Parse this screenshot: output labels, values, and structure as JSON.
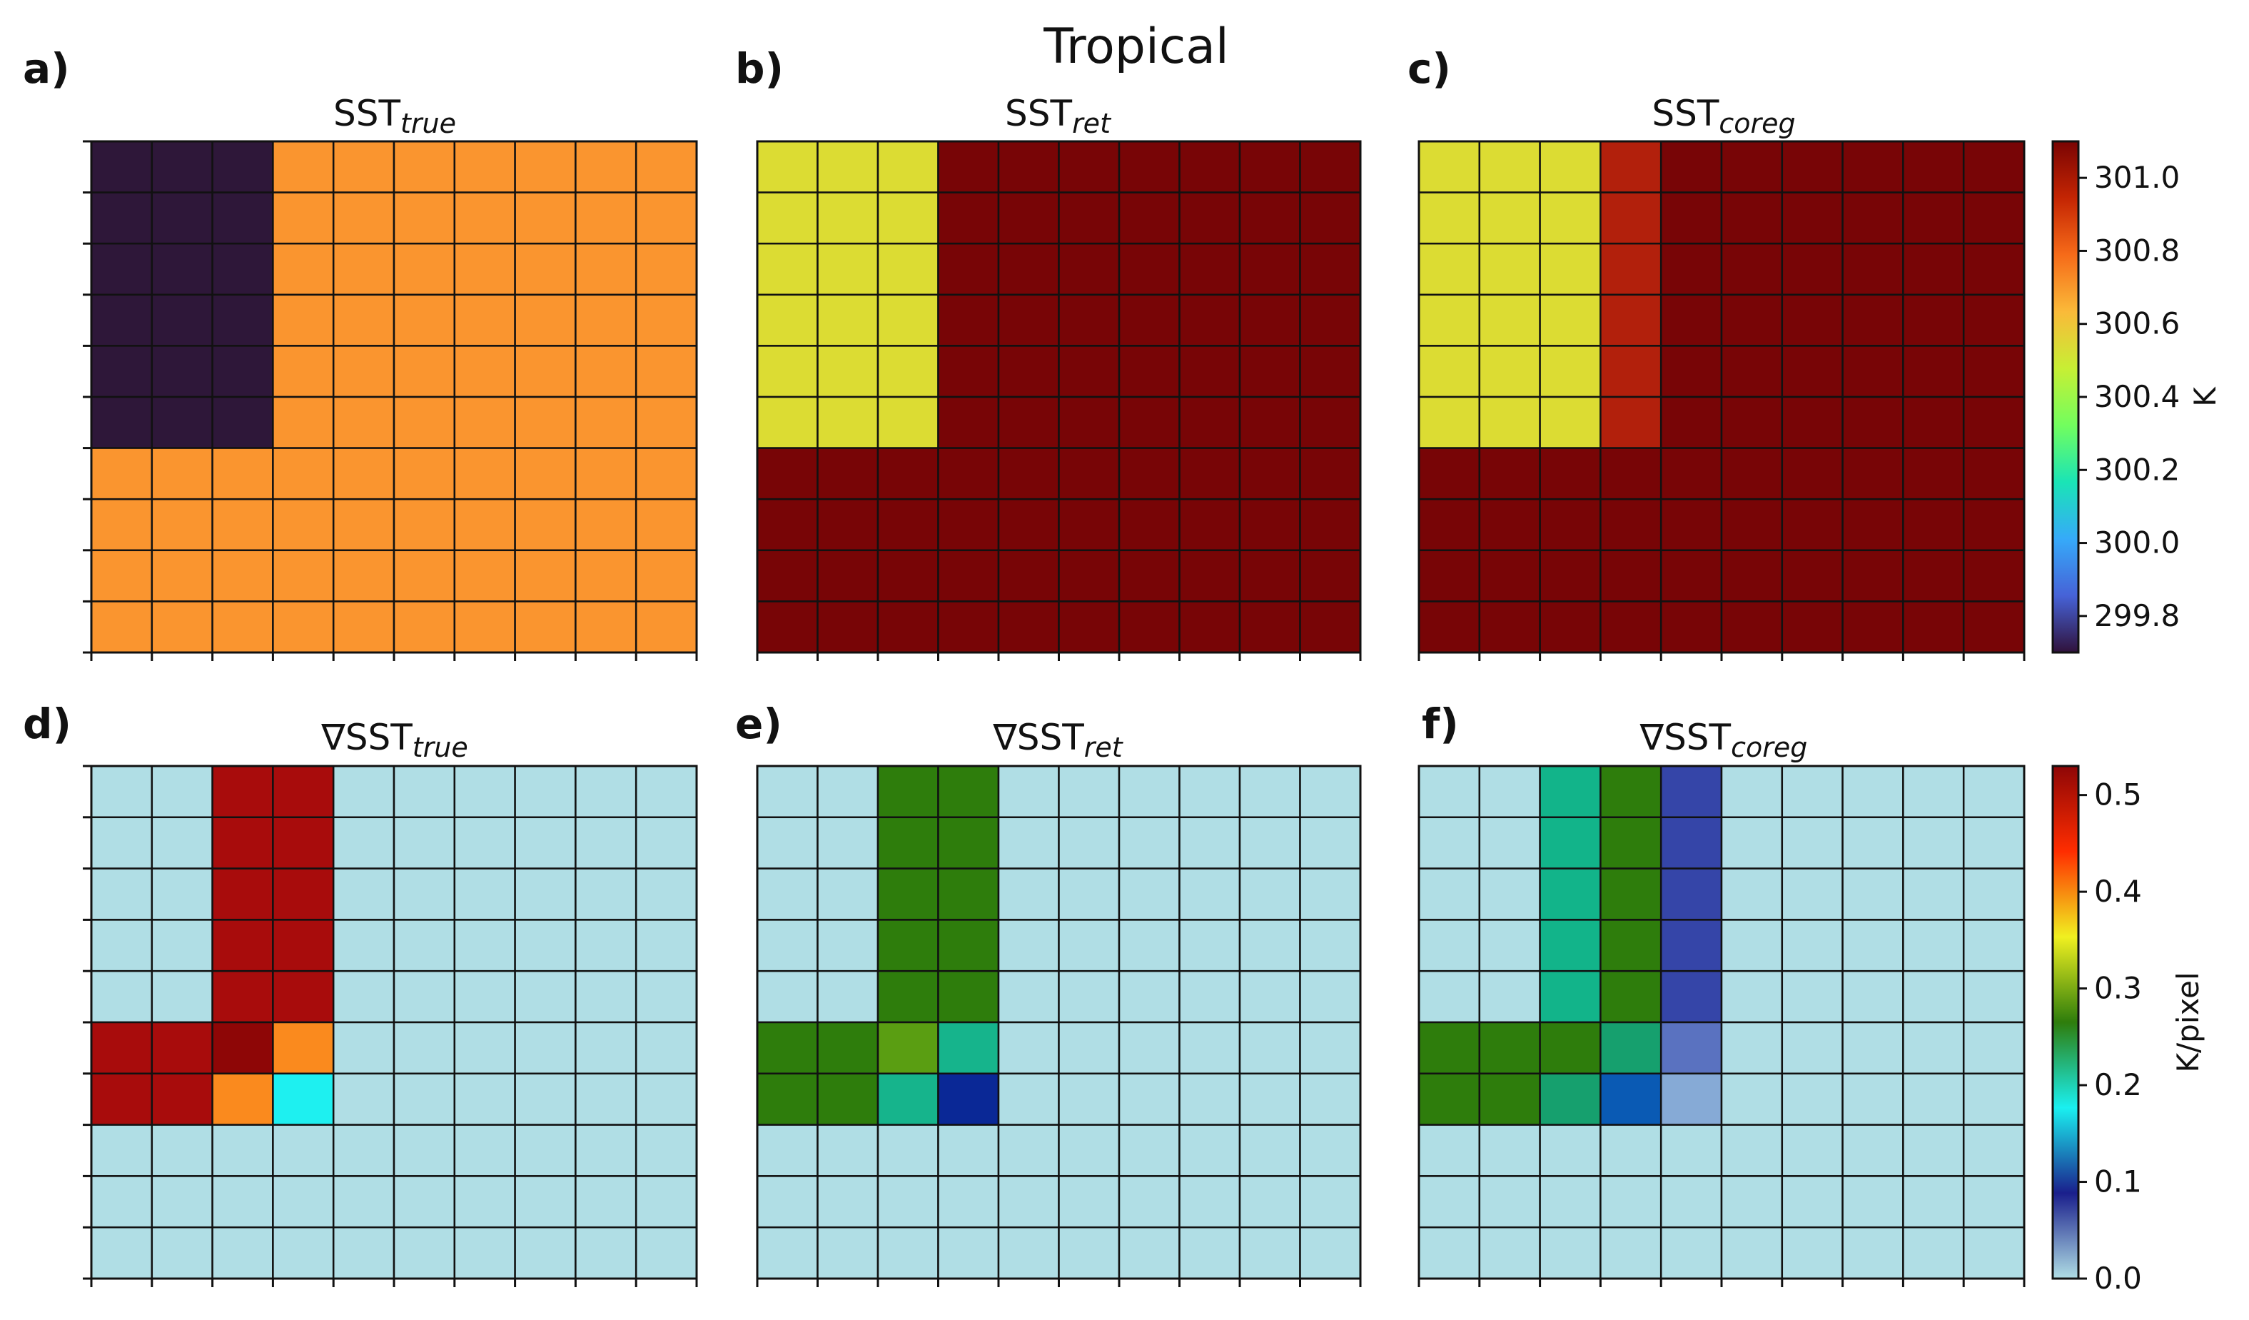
{
  "figure": {
    "title": "Tropical"
  },
  "chart_data": [
    {
      "type": "heatmap",
      "panel": "a)",
      "title_main": "SST",
      "title_sub": "true",
      "scale": "temperature",
      "grid": [
        [
          "#2E1739",
          "#2E1739",
          "#2E1739",
          "#FA952F",
          "#FA952F",
          "#FA952F",
          "#FA952F",
          "#FA952F",
          "#FA952F",
          "#FA952F"
        ],
        [
          "#2E1739",
          "#2E1739",
          "#2E1739",
          "#FA952F",
          "#FA952F",
          "#FA952F",
          "#FA952F",
          "#FA952F",
          "#FA952F",
          "#FA952F"
        ],
        [
          "#2E1739",
          "#2E1739",
          "#2E1739",
          "#FA952F",
          "#FA952F",
          "#FA952F",
          "#FA952F",
          "#FA952F",
          "#FA952F",
          "#FA952F"
        ],
        [
          "#2E1739",
          "#2E1739",
          "#2E1739",
          "#FA952F",
          "#FA952F",
          "#FA952F",
          "#FA952F",
          "#FA952F",
          "#FA952F",
          "#FA952F"
        ],
        [
          "#2E1739",
          "#2E1739",
          "#2E1739",
          "#FA952F",
          "#FA952F",
          "#FA952F",
          "#FA952F",
          "#FA952F",
          "#FA952F",
          "#FA952F"
        ],
        [
          "#2E1739",
          "#2E1739",
          "#2E1739",
          "#FA952F",
          "#FA952F",
          "#FA952F",
          "#FA952F",
          "#FA952F",
          "#FA952F",
          "#FA952F"
        ],
        [
          "#FA952F",
          "#FA952F",
          "#FA952F",
          "#FA952F",
          "#FA952F",
          "#FA952F",
          "#FA952F",
          "#FA952F",
          "#FA952F",
          "#FA952F"
        ],
        [
          "#FA952F",
          "#FA952F",
          "#FA952F",
          "#FA952F",
          "#FA952F",
          "#FA952F",
          "#FA952F",
          "#FA952F",
          "#FA952F",
          "#FA952F"
        ],
        [
          "#FA952F",
          "#FA952F",
          "#FA952F",
          "#FA952F",
          "#FA952F",
          "#FA952F",
          "#FA952F",
          "#FA952F",
          "#FA952F",
          "#FA952F"
        ],
        [
          "#FA952F",
          "#FA952F",
          "#FA952F",
          "#FA952F",
          "#FA952F",
          "#FA952F",
          "#FA952F",
          "#FA952F",
          "#FA952F",
          "#FA952F"
        ]
      ]
    },
    {
      "type": "heatmap",
      "panel": "b)",
      "title_main": "SST",
      "title_sub": "ret",
      "scale": "temperature",
      "grid": [
        [
          "#DCDC33",
          "#DCDC33",
          "#DCDC33",
          "#780506",
          "#780506",
          "#780506",
          "#780506",
          "#780506",
          "#780506",
          "#780506"
        ],
        [
          "#DCDC33",
          "#DCDC33",
          "#DCDC33",
          "#780506",
          "#780506",
          "#780506",
          "#780506",
          "#780506",
          "#780506",
          "#780506"
        ],
        [
          "#DCDC33",
          "#DCDC33",
          "#DCDC33",
          "#780506",
          "#780506",
          "#780506",
          "#780506",
          "#780506",
          "#780506",
          "#780506"
        ],
        [
          "#DCDC33",
          "#DCDC33",
          "#DCDC33",
          "#780506",
          "#780506",
          "#780506",
          "#780506",
          "#780506",
          "#780506",
          "#780506"
        ],
        [
          "#DCDC33",
          "#DCDC33",
          "#DCDC33",
          "#780506",
          "#780506",
          "#780506",
          "#780506",
          "#780506",
          "#780506",
          "#780506"
        ],
        [
          "#DCDC33",
          "#DCDC33",
          "#DCDC33",
          "#780506",
          "#780506",
          "#780506",
          "#780506",
          "#780506",
          "#780506",
          "#780506"
        ],
        [
          "#780506",
          "#780506",
          "#780506",
          "#780506",
          "#780506",
          "#780506",
          "#780506",
          "#780506",
          "#780506",
          "#780506"
        ],
        [
          "#780506",
          "#780506",
          "#780506",
          "#780506",
          "#780506",
          "#780506",
          "#780506",
          "#780506",
          "#780506",
          "#780506"
        ],
        [
          "#780506",
          "#780506",
          "#780506",
          "#780506",
          "#780506",
          "#780506",
          "#780506",
          "#780506",
          "#780506",
          "#780506"
        ],
        [
          "#780506",
          "#780506",
          "#780506",
          "#780506",
          "#780506",
          "#780506",
          "#780506",
          "#780506",
          "#780506",
          "#780506"
        ]
      ]
    },
    {
      "type": "heatmap",
      "panel": "c)",
      "title_main": "SST",
      "title_sub": "coreg",
      "scale": "temperature",
      "grid": [
        [
          "#DCDC33",
          "#DCDC33",
          "#DCDC33",
          "#B2200C",
          "#780506",
          "#780506",
          "#780506",
          "#780506",
          "#780506",
          "#780506"
        ],
        [
          "#DCDC33",
          "#DCDC33",
          "#DCDC33",
          "#B2200C",
          "#780506",
          "#780506",
          "#780506",
          "#780506",
          "#780506",
          "#780506"
        ],
        [
          "#DCDC33",
          "#DCDC33",
          "#DCDC33",
          "#B2200C",
          "#780506",
          "#780506",
          "#780506",
          "#780506",
          "#780506",
          "#780506"
        ],
        [
          "#DCDC33",
          "#DCDC33",
          "#DCDC33",
          "#B2200C",
          "#780506",
          "#780506",
          "#780506",
          "#780506",
          "#780506",
          "#780506"
        ],
        [
          "#DCDC33",
          "#DCDC33",
          "#DCDC33",
          "#B2200C",
          "#780506",
          "#780506",
          "#780506",
          "#780506",
          "#780506",
          "#780506"
        ],
        [
          "#DCDC33",
          "#DCDC33",
          "#DCDC33",
          "#B2200C",
          "#780506",
          "#780506",
          "#780506",
          "#780506",
          "#780506",
          "#780506"
        ],
        [
          "#780506",
          "#780506",
          "#780506",
          "#780506",
          "#780506",
          "#780506",
          "#780506",
          "#780506",
          "#780506",
          "#780506"
        ],
        [
          "#780506",
          "#780506",
          "#780506",
          "#780506",
          "#780506",
          "#780506",
          "#780506",
          "#780506",
          "#780506",
          "#780506"
        ],
        [
          "#780506",
          "#780506",
          "#780506",
          "#780506",
          "#780506",
          "#780506",
          "#780506",
          "#780506",
          "#780506",
          "#780506"
        ],
        [
          "#780506",
          "#780506",
          "#780506",
          "#780506",
          "#780506",
          "#780506",
          "#780506",
          "#780506",
          "#780506",
          "#780506"
        ]
      ]
    },
    {
      "type": "heatmap",
      "panel": "d)",
      "title_main": "∇SST",
      "title_sub": "true",
      "scale": "gradient",
      "grid": [
        [
          "#B0DEE5",
          "#B0DEE5",
          "#A80C0C",
          "#A80C0C",
          "#B0DEE5",
          "#B0DEE5",
          "#B0DEE5",
          "#B0DEE5",
          "#B0DEE5",
          "#B0DEE5"
        ],
        [
          "#B0DEE5",
          "#B0DEE5",
          "#A80C0C",
          "#A80C0C",
          "#B0DEE5",
          "#B0DEE5",
          "#B0DEE5",
          "#B0DEE5",
          "#B0DEE5",
          "#B0DEE5"
        ],
        [
          "#B0DEE5",
          "#B0DEE5",
          "#A80C0C",
          "#A80C0C",
          "#B0DEE5",
          "#B0DEE5",
          "#B0DEE5",
          "#B0DEE5",
          "#B0DEE5",
          "#B0DEE5"
        ],
        [
          "#B0DEE5",
          "#B0DEE5",
          "#A80C0C",
          "#A80C0C",
          "#B0DEE5",
          "#B0DEE5",
          "#B0DEE5",
          "#B0DEE5",
          "#B0DEE5",
          "#B0DEE5"
        ],
        [
          "#B0DEE5",
          "#B0DEE5",
          "#A80C0C",
          "#A80C0C",
          "#B0DEE5",
          "#B0DEE5",
          "#B0DEE5",
          "#B0DEE5",
          "#B0DEE5",
          "#B0DEE5"
        ],
        [
          "#A80C0C",
          "#A80C0C",
          "#8E0606",
          "#FA8A1E",
          "#B0DEE5",
          "#B0DEE5",
          "#B0DEE5",
          "#B0DEE5",
          "#B0DEE5",
          "#B0DEE5"
        ],
        [
          "#A80C0C",
          "#A80C0C",
          "#FA8A1E",
          "#1EF0F0",
          "#B0DEE5",
          "#B0DEE5",
          "#B0DEE5",
          "#B0DEE5",
          "#B0DEE5",
          "#B0DEE5"
        ],
        [
          "#B0DEE5",
          "#B0DEE5",
          "#B0DEE5",
          "#B0DEE5",
          "#B0DEE5",
          "#B0DEE5",
          "#B0DEE5",
          "#B0DEE5",
          "#B0DEE5",
          "#B0DEE5"
        ],
        [
          "#B0DEE5",
          "#B0DEE5",
          "#B0DEE5",
          "#B0DEE5",
          "#B0DEE5",
          "#B0DEE5",
          "#B0DEE5",
          "#B0DEE5",
          "#B0DEE5",
          "#B0DEE5"
        ],
        [
          "#B0DEE5",
          "#B0DEE5",
          "#B0DEE5",
          "#B0DEE5",
          "#B0DEE5",
          "#B0DEE5",
          "#B0DEE5",
          "#B0DEE5",
          "#B0DEE5",
          "#B0DEE5"
        ]
      ]
    },
    {
      "type": "heatmap",
      "panel": "e)",
      "title_main": "∇SST",
      "title_sub": "ret",
      "scale": "gradient",
      "grid": [
        [
          "#B0DEE5",
          "#B0DEE5",
          "#2E7D0C",
          "#2E7D0C",
          "#B0DEE5",
          "#B0DEE5",
          "#B0DEE5",
          "#B0DEE5",
          "#B0DEE5",
          "#B0DEE5"
        ],
        [
          "#B0DEE5",
          "#B0DEE5",
          "#2E7D0C",
          "#2E7D0C",
          "#B0DEE5",
          "#B0DEE5",
          "#B0DEE5",
          "#B0DEE5",
          "#B0DEE5",
          "#B0DEE5"
        ],
        [
          "#B0DEE5",
          "#B0DEE5",
          "#2E7D0C",
          "#2E7D0C",
          "#B0DEE5",
          "#B0DEE5",
          "#B0DEE5",
          "#B0DEE5",
          "#B0DEE5",
          "#B0DEE5"
        ],
        [
          "#B0DEE5",
          "#B0DEE5",
          "#2E7D0C",
          "#2E7D0C",
          "#B0DEE5",
          "#B0DEE5",
          "#B0DEE5",
          "#B0DEE5",
          "#B0DEE5",
          "#B0DEE5"
        ],
        [
          "#B0DEE5",
          "#B0DEE5",
          "#2E7D0C",
          "#2E7D0C",
          "#B0DEE5",
          "#B0DEE5",
          "#B0DEE5",
          "#B0DEE5",
          "#B0DEE5",
          "#B0DEE5"
        ],
        [
          "#2E7D0C",
          "#2E7D0C",
          "#5A9E12",
          "#16B48C",
          "#B0DEE5",
          "#B0DEE5",
          "#B0DEE5",
          "#B0DEE5",
          "#B0DEE5",
          "#B0DEE5"
        ],
        [
          "#2E7D0C",
          "#2E7D0C",
          "#16B48C",
          "#0A2896",
          "#B0DEE5",
          "#B0DEE5",
          "#B0DEE5",
          "#B0DEE5",
          "#B0DEE5",
          "#B0DEE5"
        ],
        [
          "#B0DEE5",
          "#B0DEE5",
          "#B0DEE5",
          "#B0DEE5",
          "#B0DEE5",
          "#B0DEE5",
          "#B0DEE5",
          "#B0DEE5",
          "#B0DEE5",
          "#B0DEE5"
        ],
        [
          "#B0DEE5",
          "#B0DEE5",
          "#B0DEE5",
          "#B0DEE5",
          "#B0DEE5",
          "#B0DEE5",
          "#B0DEE5",
          "#B0DEE5",
          "#B0DEE5",
          "#B0DEE5"
        ],
        [
          "#B0DEE5",
          "#B0DEE5",
          "#B0DEE5",
          "#B0DEE5",
          "#B0DEE5",
          "#B0DEE5",
          "#B0DEE5",
          "#B0DEE5",
          "#B0DEE5",
          "#B0DEE5"
        ]
      ]
    },
    {
      "type": "heatmap",
      "panel": "f)",
      "title_main": "∇SST",
      "title_sub": "coreg",
      "scale": "gradient",
      "grid": [
        [
          "#B0DEE5",
          "#B0DEE5",
          "#12B48A",
          "#2E7D0C",
          "#3545A8",
          "#B0DEE5",
          "#B0DEE5",
          "#B0DEE5",
          "#B0DEE5",
          "#B0DEE5"
        ],
        [
          "#B0DEE5",
          "#B0DEE5",
          "#12B48A",
          "#2E7D0C",
          "#3545A8",
          "#B0DEE5",
          "#B0DEE5",
          "#B0DEE5",
          "#B0DEE5",
          "#B0DEE5"
        ],
        [
          "#B0DEE5",
          "#B0DEE5",
          "#12B48A",
          "#2E7D0C",
          "#3545A8",
          "#B0DEE5",
          "#B0DEE5",
          "#B0DEE5",
          "#B0DEE5",
          "#B0DEE5"
        ],
        [
          "#B0DEE5",
          "#B0DEE5",
          "#12B48A",
          "#2E7D0C",
          "#3545A8",
          "#B0DEE5",
          "#B0DEE5",
          "#B0DEE5",
          "#B0DEE5",
          "#B0DEE5"
        ],
        [
          "#B0DEE5",
          "#B0DEE5",
          "#12B48A",
          "#2E7D0C",
          "#3545A8",
          "#B0DEE5",
          "#B0DEE5",
          "#B0DEE5",
          "#B0DEE5",
          "#B0DEE5"
        ],
        [
          "#2E7D0C",
          "#2E7D0C",
          "#2E7D0C",
          "#16A06E",
          "#5A72C0",
          "#B0DEE5",
          "#B0DEE5",
          "#B0DEE5",
          "#B0DEE5",
          "#B0DEE5"
        ],
        [
          "#2E7D0C",
          "#2E7D0C",
          "#16A06E",
          "#0A5AB4",
          "#86AAD6",
          "#B0DEE5",
          "#B0DEE5",
          "#B0DEE5",
          "#B0DEE5",
          "#B0DEE5"
        ],
        [
          "#B0DEE5",
          "#B0DEE5",
          "#B0DEE5",
          "#B0DEE5",
          "#B0DEE5",
          "#B0DEE5",
          "#B0DEE5",
          "#B0DEE5",
          "#B0DEE5",
          "#B0DEE5"
        ],
        [
          "#B0DEE5",
          "#B0DEE5",
          "#B0DEE5",
          "#B0DEE5",
          "#B0DEE5",
          "#B0DEE5",
          "#B0DEE5",
          "#B0DEE5",
          "#B0DEE5",
          "#B0DEE5"
        ],
        [
          "#B0DEE5",
          "#B0DEE5",
          "#B0DEE5",
          "#B0DEE5",
          "#B0DEE5",
          "#B0DEE5",
          "#B0DEE5",
          "#B0DEE5",
          "#B0DEE5",
          "#B0DEE5"
        ]
      ]
    }
  ],
  "colorbars": {
    "temperature": {
      "label": "K",
      "range": [
        299.7,
        301.1
      ],
      "ticks": [
        "301.0",
        "300.8",
        "300.6",
        "300.4",
        "300.2",
        "300.0",
        "299.8"
      ],
      "tick_values": [
        301.0,
        300.8,
        300.6,
        300.4,
        300.2,
        300.0,
        299.8
      ],
      "stops": [
        "#30123B",
        "#4662D7",
        "#36AAF9",
        "#1AE4B6",
        "#72FE5E",
        "#C7EF34",
        "#FABA39",
        "#F66B19",
        "#C42503",
        "#7A0403"
      ]
    },
    "gradient": {
      "label": "K/pixel",
      "range": [
        0.0,
        0.53
      ],
      "ticks": [
        "0.5",
        "0.4",
        "0.3",
        "0.2",
        "0.1",
        "0.0"
      ],
      "tick_values": [
        0.5,
        0.4,
        0.3,
        0.2,
        0.1,
        0.0
      ],
      "stops": [
        "#B0DEE5",
        "#1A1F8C",
        "#1AF0F0",
        "#2E7D0C",
        "#F0F020",
        "#FF2D00",
        "#8E0606"
      ]
    }
  }
}
